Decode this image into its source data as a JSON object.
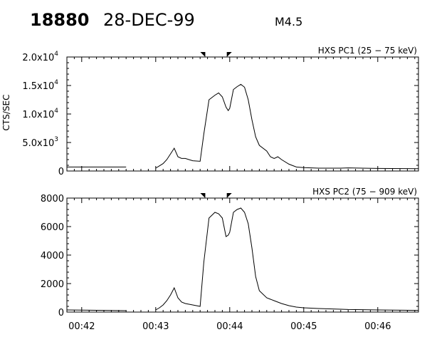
{
  "header": {
    "flare_id": "18880",
    "date": "28-DEC-99",
    "goes_class": "M4.5"
  },
  "y_axis_label": "CTS/SEC",
  "chart_data": [
    {
      "type": "line",
      "title": "HXS PC1 (25 − 75 keV)",
      "ylabel": "CTS/SEC",
      "ylim": [
        0,
        20000
      ],
      "yticks": [
        {
          "value": 0,
          "label": "0"
        },
        {
          "value": 5000,
          "label": "5.0x10",
          "exp": "3"
        },
        {
          "value": 10000,
          "label": "1.0x10",
          "exp": "4"
        },
        {
          "value": 15000,
          "label": "1.5x10",
          "exp": "4"
        },
        {
          "value": 20000,
          "label": "2.0x10",
          "exp": "4"
        }
      ],
      "xlim_min": [
        41.8,
        46.55
      ],
      "xticks": [],
      "markers_min": [
        43.66,
        43.97
      ],
      "series": [
        {
          "x": [
            41.8,
            42.6,
            42.61,
            42.85,
            43.0,
            43.05,
            43.1,
            43.15,
            43.2,
            43.25,
            43.3,
            43.35,
            43.4,
            43.5,
            43.6,
            43.65,
            43.72,
            43.8,
            43.85,
            43.9,
            43.95,
            43.98,
            44.0,
            44.05,
            44.1,
            44.15,
            44.2,
            44.25,
            44.3,
            44.35,
            44.4,
            44.5,
            44.55,
            44.6,
            44.65,
            44.7,
            44.8,
            44.9,
            45.0,
            45.2,
            45.5,
            45.6,
            46.0,
            46.55
          ],
          "y": [
            700,
            700,
            null,
            null,
            500,
            900,
            1300,
            2000,
            3000,
            4000,
            2500,
            2200,
            2200,
            1800,
            1700,
            6500,
            12500,
            13300,
            13700,
            13000,
            11200,
            10600,
            11000,
            14300,
            14800,
            15200,
            14700,
            12500,
            9000,
            6000,
            4500,
            3500,
            2500,
            2200,
            2500,
            2000,
            1200,
            700,
            600,
            500,
            500,
            550,
            450,
            400
          ]
        }
      ]
    },
    {
      "type": "line",
      "title": "HXS PC2 (75 − 909 keV)",
      "ylabel": "",
      "ylim": [
        0,
        8000
      ],
      "yticks": [
        {
          "value": 0,
          "label": "0"
        },
        {
          "value": 2000,
          "label": "2000"
        },
        {
          "value": 4000,
          "label": "4000"
        },
        {
          "value": 6000,
          "label": "6000"
        },
        {
          "value": 8000,
          "label": "8000"
        }
      ],
      "xlim_min": [
        41.8,
        46.55
      ],
      "xticks": [
        {
          "value": 42,
          "label": "00:42"
        },
        {
          "value": 43,
          "label": "00:43"
        },
        {
          "value": 44,
          "label": "00:44"
        },
        {
          "value": 45,
          "label": "00:45"
        },
        {
          "value": 46,
          "label": "00:46"
        }
      ],
      "markers_min": [
        43.66,
        43.97
      ],
      "series": [
        {
          "x": [
            41.8,
            42.6,
            42.61,
            42.85,
            43.0,
            43.05,
            43.1,
            43.15,
            43.2,
            43.25,
            43.3,
            43.35,
            43.4,
            43.5,
            43.6,
            43.65,
            43.72,
            43.8,
            43.85,
            43.9,
            43.95,
            43.98,
            44.0,
            44.05,
            44.1,
            44.15,
            44.2,
            44.25,
            44.3,
            44.35,
            44.4,
            44.5,
            44.55,
            44.6,
            44.65,
            44.7,
            44.8,
            44.9,
            45.0,
            45.2,
            45.5,
            45.6,
            46.0,
            46.55
          ],
          "y": [
            150,
            100,
            null,
            null,
            150,
            300,
            500,
            800,
            1200,
            1700,
            1000,
            700,
            600,
            500,
            400,
            3500,
            6600,
            7000,
            6900,
            6600,
            5300,
            5400,
            5600,
            7000,
            7200,
            7300,
            7000,
            6200,
            4500,
            2500,
            1500,
            1000,
            900,
            800,
            700,
            600,
            450,
            350,
            300,
            250,
            200,
            180,
            150,
            120
          ]
        }
      ]
    }
  ]
}
